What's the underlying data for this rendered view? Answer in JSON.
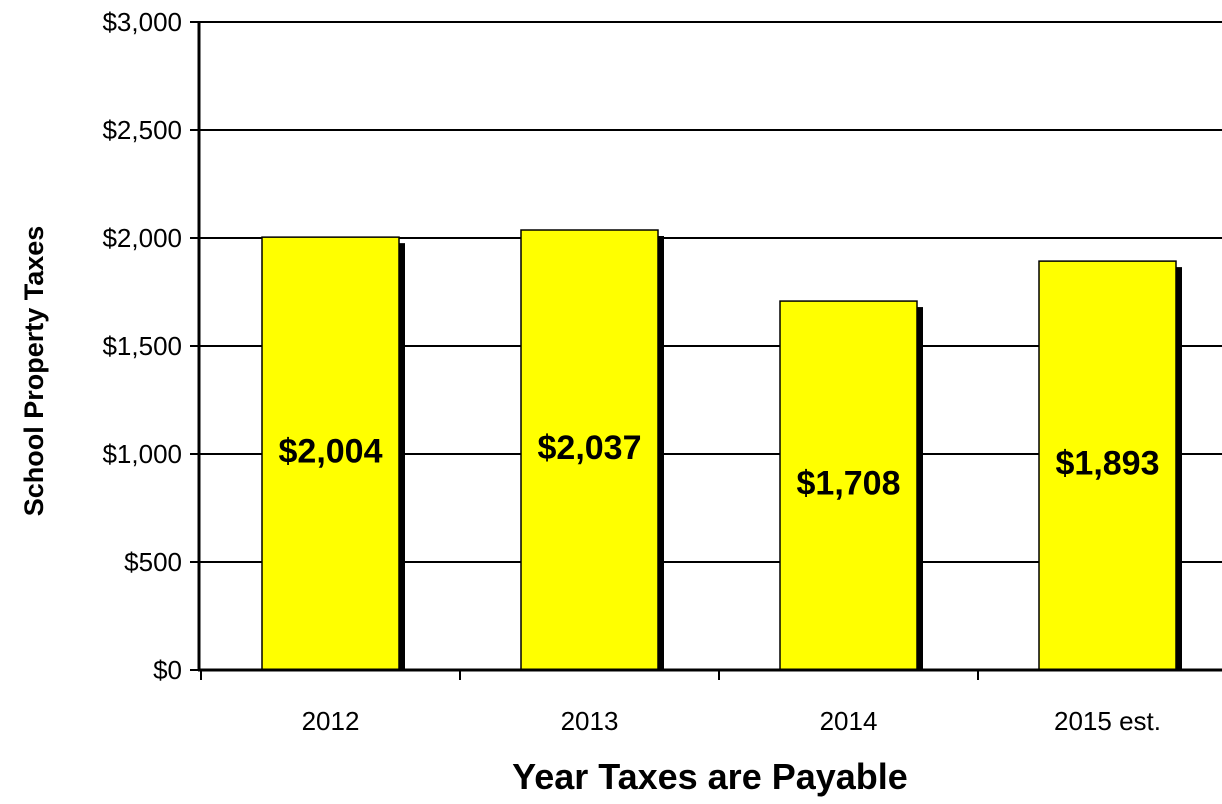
{
  "chart_data": {
    "type": "bar",
    "categories": [
      "2012",
      "2013",
      "2014",
      "2015 est."
    ],
    "values": [
      2004,
      2037,
      1708,
      1893
    ],
    "data_labels": [
      "$2,004",
      "$2,037",
      "$1,708",
      "$1,893"
    ],
    "title": "",
    "xlabel": "Year Taxes are Payable",
    "ylabel": "School Property Taxes",
    "ylim": [
      0,
      3000
    ],
    "yticks": [
      0,
      500,
      1000,
      1500,
      2000,
      2500,
      3000
    ],
    "ytick_labels": [
      "$0",
      "$500",
      "$1,000",
      "$1,500",
      "$2,000",
      "$2,500",
      "$3,000"
    ],
    "grid": true,
    "legend": "none",
    "bar_color": "#ffff00",
    "shadow_color": "#000000"
  }
}
